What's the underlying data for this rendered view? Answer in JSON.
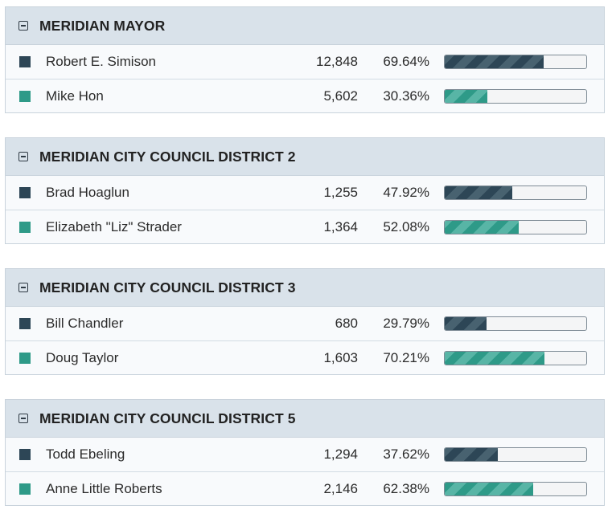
{
  "races": [
    {
      "title": "MERIDIAN MAYOR",
      "candidates": [
        {
          "name": "Robert E. Simison",
          "votes": "12,848",
          "percent": "69.64%",
          "share": 69.64,
          "color": "#2d4656"
        },
        {
          "name": "Mike Hon",
          "votes": "5,602",
          "percent": "30.36%",
          "share": 30.36,
          "color": "#2e9a88"
        }
      ]
    },
    {
      "title": "MERIDIAN CITY COUNCIL DISTRICT 2",
      "candidates": [
        {
          "name": "Brad Hoaglun",
          "votes": "1,255",
          "percent": "47.92%",
          "share": 47.92,
          "color": "#2d4656"
        },
        {
          "name": "Elizabeth \"Liz\" Strader",
          "votes": "1,364",
          "percent": "52.08%",
          "share": 52.08,
          "color": "#2e9a88"
        }
      ]
    },
    {
      "title": "MERIDIAN CITY COUNCIL DISTRICT 3",
      "candidates": [
        {
          "name": "Bill Chandler",
          "votes": "680",
          "percent": "29.79%",
          "share": 29.79,
          "color": "#2d4656"
        },
        {
          "name": "Doug Taylor",
          "votes": "1,603",
          "percent": "70.21%",
          "share": 70.21,
          "color": "#2e9a88"
        }
      ]
    },
    {
      "title": "MERIDIAN CITY COUNCIL DISTRICT 5",
      "candidates": [
        {
          "name": "Todd Ebeling",
          "votes": "1,294",
          "percent": "37.62%",
          "share": 37.62,
          "color": "#2d4656"
        },
        {
          "name": "Anne Little Roberts",
          "votes": "2,146",
          "percent": "62.38%",
          "share": 62.38,
          "color": "#2e9a88"
        }
      ]
    }
  ]
}
